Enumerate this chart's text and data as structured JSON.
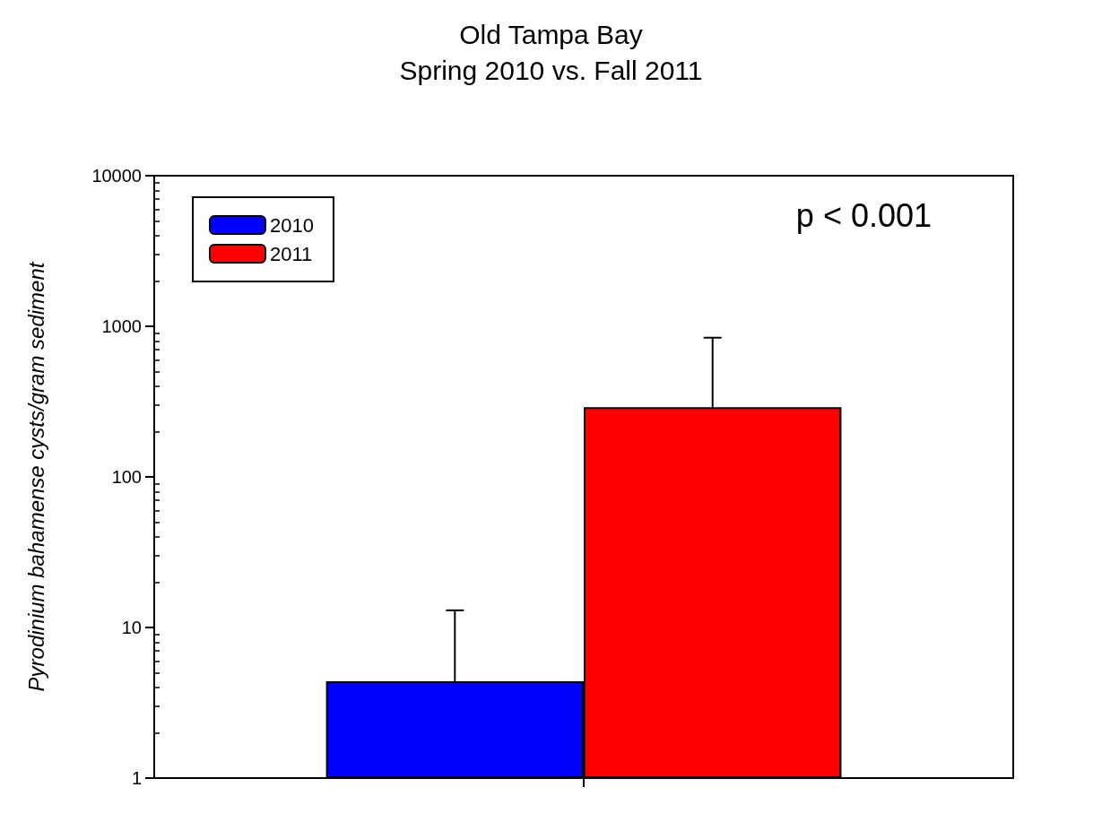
{
  "chart_data": {
    "type": "bar",
    "title": "Old Tampa Bay",
    "subtitle": "Spring 2010 vs. Fall 2011",
    "ylabel": "Pyrodinium bahamense cysts/gram sediment",
    "categories": [
      null
    ],
    "series": [
      {
        "name": "2010",
        "color": "#0000ff",
        "values": [
          4.4
        ],
        "errors": [
          [
            4.4,
            13
          ]
        ]
      },
      {
        "name": "2011",
        "color": "#ff0000",
        "values": [
          290
        ],
        "errors": [
          [
            290,
            840
          ]
        ]
      }
    ],
    "log": "y",
    "ylim": [
      1,
      10000
    ],
    "yticks": [
      1,
      10,
      100,
      1000,
      10000
    ],
    "annotations": [
      "p < 0.001"
    ],
    "legend": "top left",
    "grid": false
  }
}
